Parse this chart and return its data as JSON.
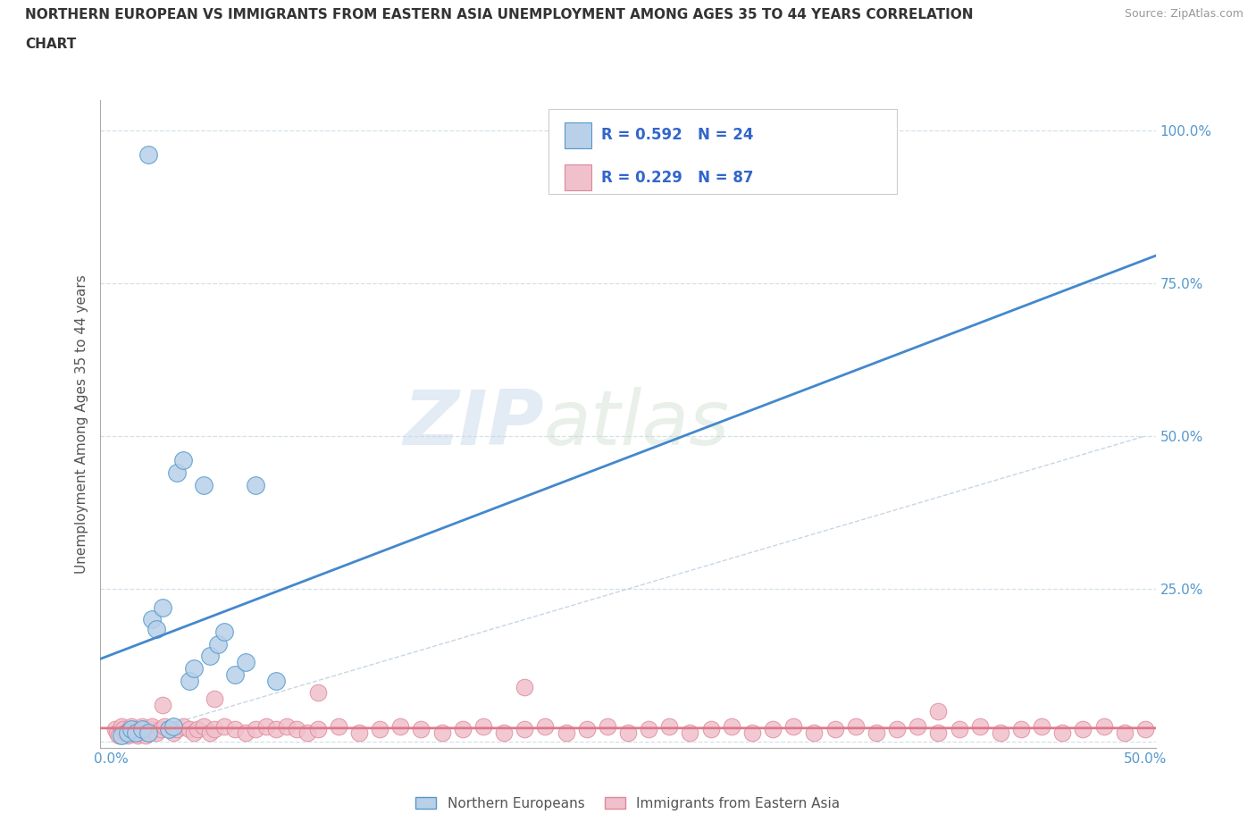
{
  "title_line1": "NORTHERN EUROPEAN VS IMMIGRANTS FROM EASTERN ASIA UNEMPLOYMENT AMONG AGES 35 TO 44 YEARS CORRELATION",
  "title_line2": "CHART",
  "source_text": "Source: ZipAtlas.com",
  "ylabel": "Unemployment Among Ages 35 to 44 years",
  "xlim": [
    -0.005,
    0.505
  ],
  "ylim": [
    -0.01,
    1.05
  ],
  "xticks": [
    0.0,
    0.1,
    0.2,
    0.3,
    0.4,
    0.5
  ],
  "yticks": [
    0.0,
    0.25,
    0.5,
    0.75,
    1.0
  ],
  "xticklabels": [
    "0.0%",
    "",
    "",
    "",
    "",
    "50.0%"
  ],
  "yticklabels": [
    "",
    "25.0%",
    "50.0%",
    "75.0%",
    "100.0%"
  ],
  "blue_face_color": "#b8d0e8",
  "blue_edge_color": "#5599cc",
  "blue_line_color": "#4488cc",
  "pink_face_color": "#f0c0cc",
  "pink_edge_color": "#dd8899",
  "pink_line_color": "#dd7788",
  "diag_color": "#bbccdd",
  "R_blue": 0.592,
  "N_blue": 24,
  "R_pink": 0.229,
  "N_pink": 87,
  "watermark": "ZIPatlas",
  "tick_color": "#5599cc",
  "grid_color": "#d0dde8",
  "title_color": "#333333",
  "source_color": "#999999",
  "legend_label_blue": "Northern Europeans",
  "legend_label_pink": "Immigrants from Eastern Asia",
  "legend_R_N_color": "#3366cc",
  "blue_x": [
    0.018,
    0.005,
    0.008,
    0.01,
    0.012,
    0.015,
    0.018,
    0.02,
    0.022,
    0.025,
    0.028,
    0.03,
    0.032,
    0.035,
    0.038,
    0.04,
    0.045,
    0.048,
    0.052,
    0.055,
    0.06,
    0.065,
    0.07,
    0.08
  ],
  "blue_y": [
    0.96,
    0.01,
    0.015,
    0.02,
    0.015,
    0.02,
    0.015,
    0.2,
    0.185,
    0.22,
    0.02,
    0.025,
    0.44,
    0.46,
    0.1,
    0.12,
    0.42,
    0.14,
    0.16,
    0.18,
    0.11,
    0.13,
    0.42,
    0.1
  ],
  "pink_x": [
    0.002,
    0.003,
    0.004,
    0.005,
    0.006,
    0.007,
    0.008,
    0.009,
    0.01,
    0.011,
    0.012,
    0.013,
    0.014,
    0.015,
    0.016,
    0.017,
    0.018,
    0.019,
    0.02,
    0.022,
    0.024,
    0.026,
    0.028,
    0.03,
    0.032,
    0.035,
    0.038,
    0.04,
    0.042,
    0.045,
    0.048,
    0.05,
    0.055,
    0.06,
    0.065,
    0.07,
    0.075,
    0.08,
    0.085,
    0.09,
    0.095,
    0.1,
    0.11,
    0.12,
    0.13,
    0.14,
    0.15,
    0.16,
    0.17,
    0.18,
    0.19,
    0.2,
    0.21,
    0.22,
    0.23,
    0.24,
    0.25,
    0.26,
    0.27,
    0.28,
    0.29,
    0.3,
    0.31,
    0.32,
    0.33,
    0.34,
    0.35,
    0.36,
    0.37,
    0.38,
    0.39,
    0.4,
    0.41,
    0.42,
    0.43,
    0.44,
    0.45,
    0.46,
    0.47,
    0.48,
    0.49,
    0.5,
    0.025,
    0.05,
    0.1,
    0.2,
    0.4
  ],
  "pink_y": [
    0.02,
    0.015,
    0.01,
    0.025,
    0.02,
    0.015,
    0.01,
    0.02,
    0.025,
    0.015,
    0.02,
    0.01,
    0.015,
    0.025,
    0.02,
    0.01,
    0.015,
    0.02,
    0.025,
    0.015,
    0.02,
    0.025,
    0.02,
    0.015,
    0.02,
    0.025,
    0.02,
    0.015,
    0.02,
    0.025,
    0.015,
    0.02,
    0.025,
    0.02,
    0.015,
    0.02,
    0.025,
    0.02,
    0.025,
    0.02,
    0.015,
    0.02,
    0.025,
    0.015,
    0.02,
    0.025,
    0.02,
    0.015,
    0.02,
    0.025,
    0.015,
    0.02,
    0.025,
    0.015,
    0.02,
    0.025,
    0.015,
    0.02,
    0.025,
    0.015,
    0.02,
    0.025,
    0.015,
    0.02,
    0.025,
    0.015,
    0.02,
    0.025,
    0.015,
    0.02,
    0.025,
    0.015,
    0.02,
    0.025,
    0.015,
    0.02,
    0.025,
    0.015,
    0.02,
    0.025,
    0.015,
    0.02,
    0.06,
    0.07,
    0.08,
    0.09,
    0.05
  ]
}
